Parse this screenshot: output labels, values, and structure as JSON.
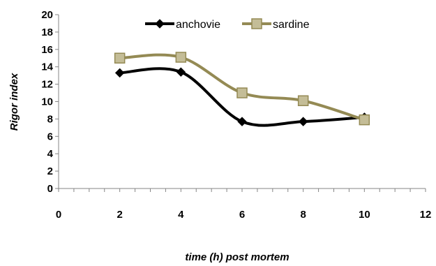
{
  "chart_data": {
    "type": "line",
    "title": "",
    "xlabel": "time (h) post mortem",
    "ylabel": "Rigor index",
    "xlim": [
      0,
      12
    ],
    "ylim": [
      0,
      20
    ],
    "xticks": [
      0,
      2,
      4,
      6,
      8,
      10,
      12
    ],
    "yticks": [
      0,
      2,
      4,
      6,
      8,
      10,
      12,
      14,
      16,
      18,
      20
    ],
    "grid": false,
    "legend_position": "top",
    "smooth": true,
    "series": [
      {
        "name": "anchovie",
        "color": "#000000",
        "marker": "diamond",
        "x": [
          2,
          4,
          6,
          8,
          10
        ],
        "y": [
          13.3,
          13.4,
          7.7,
          7.7,
          8.2
        ]
      },
      {
        "name": "sardine",
        "color": "#948A54",
        "marker": "square",
        "x": [
          2,
          4,
          6,
          8,
          10
        ],
        "y": [
          15.0,
          15.1,
          11.0,
          10.1,
          7.9
        ]
      }
    ]
  }
}
